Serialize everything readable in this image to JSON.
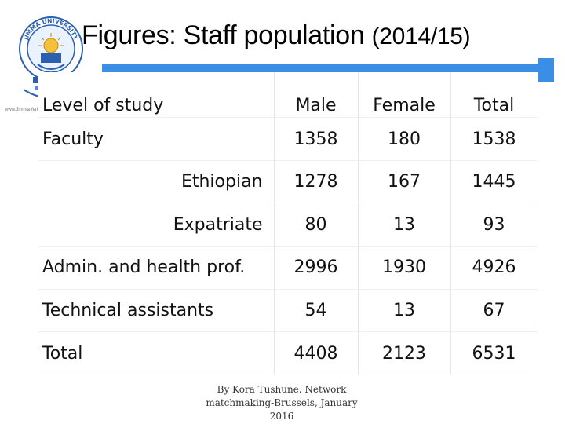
{
  "slide": {
    "title_main": "Figures: Staff population",
    "title_year": "(2014/15)",
    "accent_color": "#3a8ee6"
  },
  "logo": {
    "name": "university-seal-logo",
    "arc_text": "JIMMA UNIVERSITY"
  },
  "tiny_url": "www.Jimma-ferhaa.com.et",
  "table": {
    "header": {
      "label": "Level of study",
      "male": "Male",
      "female": "Female",
      "total": "Total"
    },
    "rows": [
      {
        "label": "Faculty",
        "male": "1358",
        "female": "180",
        "total": "1538",
        "indent": false
      },
      {
        "label": "Ethiopian",
        "male": "1278",
        "female": "167",
        "total": "1445",
        "indent": true
      },
      {
        "label": "Expatriate",
        "male": "80",
        "female": "13",
        "total": "93",
        "indent": true
      },
      {
        "label": "Admin. and health prof.",
        "male": "2996",
        "female": "1930",
        "total": "4926",
        "indent": false
      },
      {
        "label": "Technical assistants",
        "male": "54",
        "female": "13",
        "total": "67",
        "indent": false
      },
      {
        "label": "Total",
        "male": "4408",
        "female": "2123",
        "total": "6531",
        "indent": false
      }
    ]
  },
  "footer": {
    "line1": "By Kora Tushune. Network",
    "line2": "matchmaking-Brussels, January",
    "line3": "2016"
  }
}
